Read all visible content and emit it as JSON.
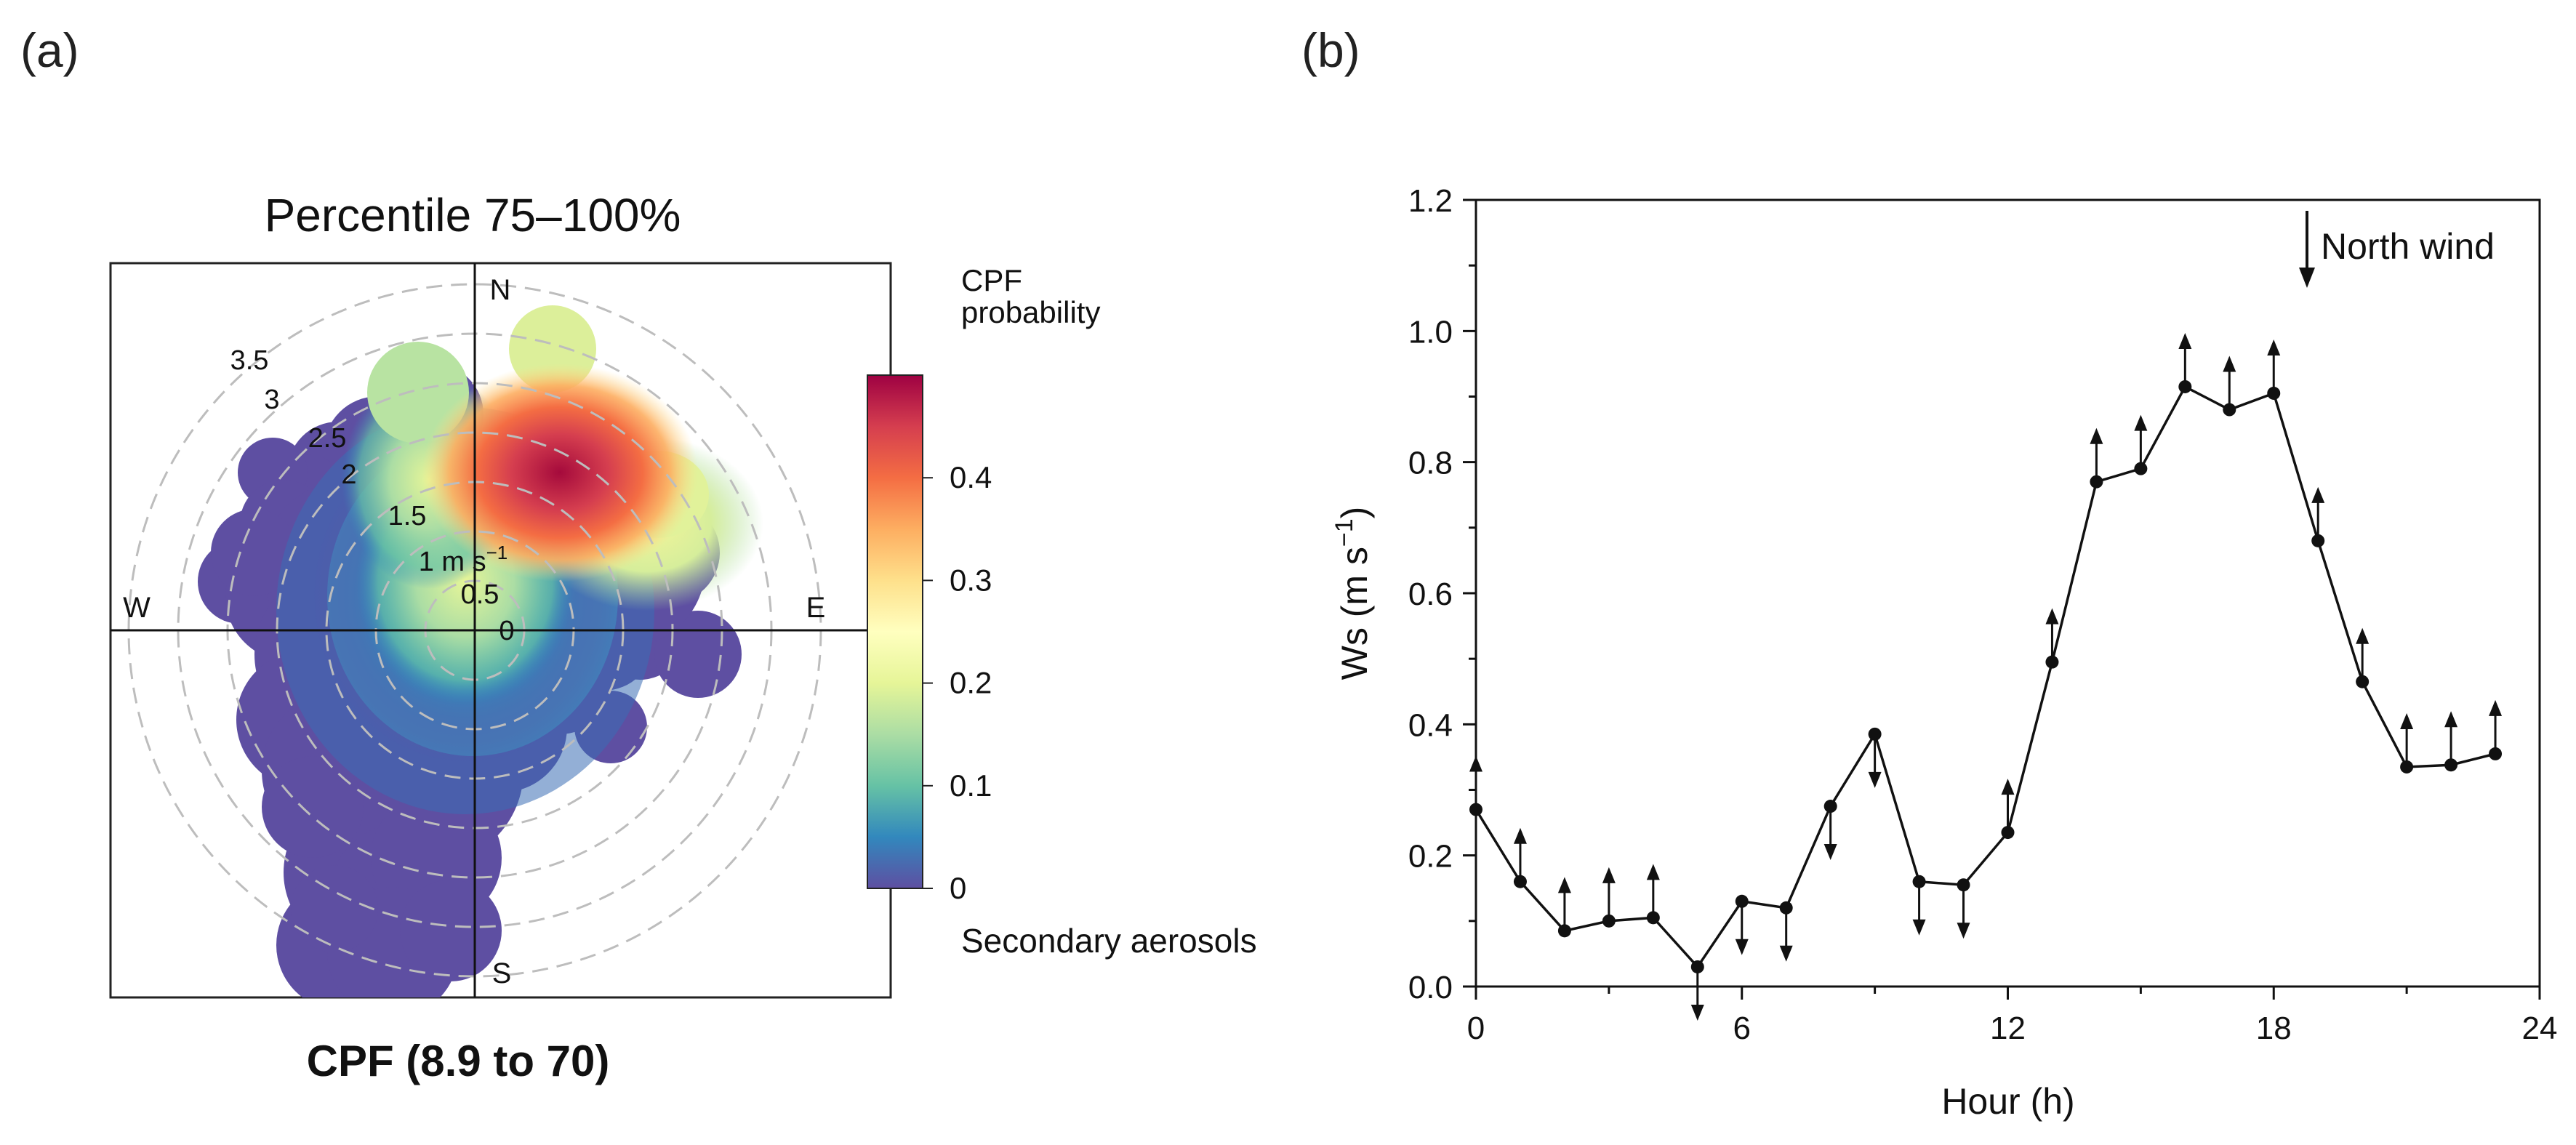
{
  "panel_a": {
    "label": "(a)",
    "title": "Percentile 75–100%",
    "bottom_title": "CPF (8.9 to 70)",
    "compass": {
      "north": "N",
      "south": "S",
      "east": "E",
      "west": "W"
    },
    "ring_labels": [
      "0",
      "0.5",
      "1 m s",
      "1.5",
      "2",
      "2.5",
      "3",
      "3.5"
    ],
    "ring_unit_exponent": "−1",
    "colorbar": {
      "title_line1": "CPF",
      "title_line2": "probability",
      "ticks": [
        "0",
        "0.1",
        "0.2",
        "0.3",
        "0.4"
      ],
      "footer": "Secondary aerosols"
    }
  },
  "panel_b": {
    "label": "(b)",
    "ylabel_main": "Ws (m s",
    "ylabel_exponent": "−1",
    "ylabel_close": ")",
    "xlabel": "Hour (h)",
    "legend_text": "North wind"
  },
  "chart_data": [
    {
      "type": "heatmap",
      "subtype": "polar-cpf",
      "title": "Percentile 75–100%",
      "radial_axis": {
        "label": "m s−1",
        "range": [
          0,
          3.5
        ],
        "ticks": [
          0,
          0.5,
          1,
          1.5,
          2,
          2.5,
          3,
          3.5
        ]
      },
      "color_scale": {
        "name": "CPF probability",
        "range": [
          0,
          0.5
        ],
        "ticks": [
          0,
          0.1,
          0.2,
          0.3,
          0.4
        ],
        "colormap": "Spectral_r"
      },
      "hotspots": [
        {
          "direction_deg": 20,
          "speed": 1.9,
          "probability": 0.48
        },
        {
          "direction_deg": 0,
          "speed": 0.8,
          "probability": 0.22
        },
        {
          "direction_deg": 45,
          "speed": 2.2,
          "probability": 0.25
        }
      ],
      "caption": "CPF (8.9 to 70)",
      "species": "Secondary aerosols"
    },
    {
      "type": "line",
      "x": [
        0,
        1,
        2,
        3,
        4,
        5,
        6,
        7,
        8,
        9,
        10,
        11,
        12,
        13,
        14,
        15,
        16,
        17,
        18,
        19,
        20,
        21,
        22,
        23
      ],
      "series": [
        {
          "values": [
            0.27,
            0.16,
            0.085,
            0.1,
            0.105,
            0.03,
            0.13,
            0.12,
            0.275,
            0.385,
            0.16,
            0.155,
            0.235,
            0.495,
            0.77,
            0.79,
            0.915,
            0.88,
            0.905,
            0.68,
            0.465,
            0.335,
            0.338,
            0.355
          ]
        }
      ],
      "wind_arrows": [
        "up",
        "up",
        "up",
        "up",
        "up",
        "down",
        "down",
        "down",
        "down",
        "down",
        "down",
        "down",
        "up",
        "up",
        "up",
        "up",
        "up",
        "up",
        "up",
        "up",
        "up",
        "up",
        "up",
        "up"
      ],
      "xlabel": "Hour (h)",
      "ylabel": "Ws (m s−1)",
      "xlim": [
        0,
        24
      ],
      "ylim": [
        0,
        1.2
      ],
      "xticks": [
        0,
        6,
        12,
        18,
        24
      ],
      "yticks": [
        0.0,
        0.2,
        0.4,
        0.6,
        0.8,
        1.0,
        1.2
      ],
      "ytick_labels": [
        "0.0",
        "0.2",
        "0.4",
        "0.6",
        "0.8",
        "1.0",
        "1.2"
      ],
      "legend": {
        "text": "North wind",
        "placement": "top-right"
      }
    }
  ]
}
